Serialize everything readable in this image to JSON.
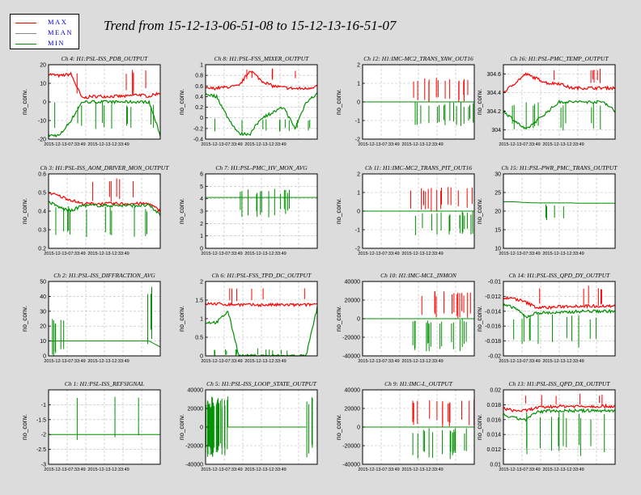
{
  "title": "Trend from 15-12-13-06-51-08 to 15-12-13-16-51-07",
  "legend": [
    {
      "label": "MAX",
      "color": "#ff0000"
    },
    {
      "label": "MEAN",
      "color": "#888888"
    },
    {
      "label": "MIN",
      "color": "#009000"
    }
  ],
  "colors": {
    "max": "#ff0000",
    "mean": "#888888",
    "min": "#009000",
    "background": "#dcdcdc",
    "plot_bg": "#ffffff",
    "grid": "#bbbbbb"
  },
  "chart_data": [
    {
      "type": "line",
      "title": "Ch 4: H1:PSL-ISS_PDB_OUTPUT",
      "ylabel": "no_conv.",
      "ylim": [
        -20,
        20
      ],
      "yticks": [
        -20,
        -10,
        0,
        10,
        20
      ],
      "xtick_labels": [
        "2015-12-13-07:33:49",
        "2015-12-13-12:33:49"
      ],
      "grid": true,
      "ptype": "pdb",
      "series": [
        {
          "name": "MAX",
          "values": [
            15,
            14,
            15,
            2,
            3,
            3,
            3,
            3,
            4,
            3,
            5
          ]
        },
        {
          "name": "MIN",
          "values": [
            -18,
            -18,
            -10,
            0,
            0,
            0,
            0,
            0,
            0,
            0,
            -18
          ]
        }
      ]
    },
    {
      "type": "line",
      "title": "Ch 8: H1:PSL-FSS_MIXER_OUTPUT",
      "ylabel": "no_conv.",
      "ylim": [
        -0.4,
        1.0
      ],
      "yticks": [
        -0.4,
        -0.2,
        0,
        0.2,
        0.4,
        0.6,
        0.8,
        1
      ],
      "xtick_labels": [
        "2015-12-13-07:33:49",
        "2015-12-13-12:33:49"
      ],
      "grid": true,
      "ptype": "mixer",
      "series": [
        {
          "name": "MAX",
          "values": [
            0.55,
            0.56,
            0.58,
            0.6,
            0.9,
            0.7,
            0.6,
            0.57,
            0.55,
            0.55,
            0.6
          ]
        },
        {
          "name": "MIN",
          "values": [
            0.45,
            0.4,
            0.0,
            -0.3,
            -0.3,
            0.0,
            0.1,
            0.2,
            -0.2,
            0.3,
            0.45
          ]
        }
      ]
    },
    {
      "type": "line",
      "title": "Ch 12: H1:IMC-MC2_TRANS_YAW_OUT16",
      "ylabel": "no_conv.",
      "ylim": [
        -2,
        2
      ],
      "yticks": [
        -2,
        -1,
        0,
        1,
        2
      ],
      "xtick_labels": [
        "2015-12-13-07:33:49",
        "2015-12-13-12:33:49"
      ],
      "grid": true,
      "ptype": "burst",
      "series": [
        {
          "name": "MAX",
          "values": [
            0,
            0,
            0,
            0,
            0,
            1.3,
            1.3,
            1.3,
            1.3,
            1.3,
            1.3
          ]
        },
        {
          "name": "MIN",
          "values": [
            0,
            0,
            0,
            0,
            0,
            -1.3,
            -1.3,
            -1.3,
            -1.3,
            -1.3,
            -1.3
          ]
        }
      ]
    },
    {
      "type": "line",
      "title": "Ch 16: H1:PSL-PMC_TEMP_OUTPUT",
      "ylabel": "no_conv.",
      "ylim": [
        303.9,
        304.7
      ],
      "yticks": [
        304,
        304.2,
        304.4,
        304.6
      ],
      "xtick_labels": [
        "2015-12-13-07:33:49",
        "2015-12-13-12:33:49"
      ],
      "grid": true,
      "ptype": "temp",
      "series": [
        {
          "name": "MAX",
          "values": [
            304.4,
            304.5,
            304.6,
            304.55,
            304.5,
            304.5,
            304.45,
            304.45,
            304.45,
            304.45,
            304.45
          ]
        },
        {
          "name": "MIN",
          "values": [
            304.2,
            304.1,
            304.0,
            304.1,
            304.2,
            304.3,
            304.3,
            304.3,
            304.3,
            304.3,
            304.2
          ]
        }
      ]
    },
    {
      "type": "line",
      "title": "Ch 3: H1:PSL-ISS_AOM_DRIVER_MON_OUTPUT",
      "ylabel": "no_conv.",
      "ylim": [
        0.2,
        0.6
      ],
      "yticks": [
        0.2,
        0.3,
        0.4,
        0.5,
        0.6
      ],
      "xtick_labels": [
        "2015-12-13-07:33:49",
        "2015-12-13-12:33:49"
      ],
      "grid": true,
      "ptype": "aom",
      "series": [
        {
          "name": "MAX",
          "values": [
            0.5,
            0.48,
            0.46,
            0.44,
            0.44,
            0.44,
            0.44,
            0.44,
            0.44,
            0.44,
            0.4
          ]
        },
        {
          "name": "MIN",
          "values": [
            0.45,
            0.42,
            0.4,
            0.43,
            0.43,
            0.43,
            0.43,
            0.43,
            0.43,
            0.43,
            0.38
          ]
        }
      ]
    },
    {
      "type": "line",
      "title": "Ch 7: H1:PSL-PMC_HV_MON_AVG",
      "ylabel": "no_conv.",
      "ylim": [
        0,
        6
      ],
      "yticks": [
        0,
        1,
        2,
        3,
        4,
        5,
        6
      ],
      "xtick_labels": [
        "2015-12-13-07:33:49",
        "2015-12-13-12:33:49"
      ],
      "grid": true,
      "ptype": "hv",
      "series": [
        {
          "name": "MEAN",
          "values": [
            4.1,
            4.1,
            4.1,
            4.1,
            4.1,
            4.1,
            4.1,
            4.1,
            4.1,
            4.1,
            4.1
          ]
        }
      ]
    },
    {
      "type": "line",
      "title": "Ch 11: H1:IMC-MC2_TRANS_PIT_OUT16",
      "ylabel": "no_conv.",
      "ylim": [
        -2,
        2
      ],
      "yticks": [
        -2,
        -1,
        0,
        1,
        2
      ],
      "xtick_labels": [
        "2015-12-13-07:33:49",
        "2015-12-13-12:33:49"
      ],
      "grid": true,
      "ptype": "burst",
      "series": [
        {
          "name": "MAX",
          "values": [
            0,
            0,
            0,
            0,
            0,
            1.3,
            1.3,
            1.3,
            1.3,
            1.3,
            1.3
          ]
        },
        {
          "name": "MIN",
          "values": [
            0,
            0,
            0,
            0,
            0,
            -1.3,
            -1.3,
            -1.3,
            -1.3,
            -1.3,
            -1.3
          ]
        }
      ]
    },
    {
      "type": "line",
      "title": "Ch 15: H1:PSL-PWR_PMC_TRANS_OUTPUT",
      "ylabel": "no_conv.",
      "ylim": [
        10,
        30
      ],
      "yticks": [
        10,
        15,
        20,
        25,
        30
      ],
      "xtick_labels": [
        "2015-12-13-07:33:49",
        "2015-12-13-12:33:49"
      ],
      "grid": true,
      "ptype": "pwr",
      "series": [
        {
          "name": "MEAN",
          "values": [
            22.5,
            22.5,
            22.3,
            22.2,
            22.2,
            22.2,
            22.2,
            22.1,
            22.1,
            22.1,
            22.1
          ]
        }
      ]
    },
    {
      "type": "line",
      "title": "Ch 2: H1:PSL-ISS_DIFFRACTION_AVG",
      "ylabel": "no_conv.",
      "ylim": [
        0,
        50
      ],
      "yticks": [
        0,
        10,
        20,
        30,
        40,
        50
      ],
      "xtick_labels": [
        "2015-12-13-07:33:49",
        "2015-12-13-12:33:49"
      ],
      "grid": true,
      "ptype": "diff",
      "series": [
        {
          "name": "MEAN",
          "values": [
            10,
            10,
            10,
            10,
            10,
            10,
            10,
            10,
            10,
            10,
            6
          ]
        }
      ]
    },
    {
      "type": "line",
      "title": "Ch 6: H1:PSL-FSS_TPD_DC_OUTPUT",
      "ylabel": "no_conv.",
      "ylim": [
        0,
        2
      ],
      "yticks": [
        0,
        0.5,
        1,
        1.5,
        2
      ],
      "xtick_labels": [
        "2015-12-13-07:33:49",
        "2015-12-13-12:33:49"
      ],
      "grid": true,
      "ptype": "tpd",
      "series": [
        {
          "name": "MAX",
          "values": [
            1.4,
            1.4,
            1.38,
            1.38,
            1.37,
            1.37,
            1.37,
            1.37,
            1.37,
            1.37,
            1.4
          ]
        },
        {
          "name": "MIN",
          "values": [
            0.9,
            0.9,
            1.2,
            0.0,
            0.0,
            0.0,
            0.0,
            0.0,
            0.0,
            0.0,
            1.3
          ]
        }
      ]
    },
    {
      "type": "line",
      "title": "Ch 10: H1:IMC-MCL_INMON",
      "ylabel": "no_conv.",
      "ylim": [
        -40000,
        40000
      ],
      "yticks": [
        -40000,
        -20000,
        0,
        20000,
        40000
      ],
      "xtick_labels": [
        "2015-12-13-07:33:49",
        "2015-12-13-12:33:49"
      ],
      "grid": true,
      "ptype": "burst",
      "series": [
        {
          "name": "MAX",
          "values": [
            0,
            0,
            0,
            0,
            0,
            30000,
            30000,
            30000,
            30000,
            30000,
            30000
          ]
        },
        {
          "name": "MIN",
          "values": [
            0,
            0,
            0,
            0,
            0,
            -35000,
            -35000,
            -35000,
            -35000,
            -35000,
            -35000
          ]
        }
      ]
    },
    {
      "type": "line",
      "title": "Ch 14: H1:PSL-ISS_QPD_DY_OUTPUT",
      "ylabel": "no_conv.",
      "ylim": [
        -0.02,
        -0.01
      ],
      "yticks": [
        -0.02,
        -0.018,
        -0.016,
        -0.014,
        -0.012,
        -0.01
      ],
      "xtick_labels": [
        "2015-12-13-07:33:49",
        "2015-12-13-12:33:49"
      ],
      "grid": true,
      "ptype": "qpddy",
      "series": [
        {
          "name": "MAX",
          "values": [
            -0.0122,
            -0.0123,
            -0.0128,
            -0.0135,
            -0.0135,
            -0.0134,
            -0.0133,
            -0.0133,
            -0.0133,
            -0.0133,
            -0.0133
          ]
        },
        {
          "name": "MIN",
          "values": [
            -0.0132,
            -0.0135,
            -0.0148,
            -0.0142,
            -0.0142,
            -0.0142,
            -0.0141,
            -0.014,
            -0.014,
            -0.014,
            -0.014
          ]
        }
      ]
    },
    {
      "type": "line",
      "title": "Ch 1: H1:PSL-ISS_REFSIGNAL",
      "ylabel": "no_conv.",
      "ylim": [
        -3,
        -0.5
      ],
      "yticks": [
        -3,
        -2.5,
        -2,
        -1.5,
        -1
      ],
      "xtick_labels": [
        "2015-12-13-07:33:49",
        "2015-12-13-12:33:49"
      ],
      "grid": true,
      "ptype": "ref",
      "series": [
        {
          "name": "MEAN",
          "values": [
            -2.0,
            -2.0,
            -2.0,
            -2.0,
            -2.0,
            -2.0,
            -2.0,
            -2.0,
            -2.0,
            -2.0,
            -2.0
          ]
        }
      ]
    },
    {
      "type": "line",
      "title": "Ch 5: H1:PSL-ISS_LOOP_STATE_OUTPUT",
      "ylabel": "no_conv.",
      "ylim": [
        -40000,
        40000
      ],
      "yticks": [
        -40000,
        -20000,
        0,
        20000,
        40000
      ],
      "xtick_labels": [
        "2015-12-13-07:33:49",
        "2015-12-13-12:33:49"
      ],
      "grid": true,
      "ptype": "loop",
      "series": [
        {
          "name": "MAX",
          "values": [
            33000,
            33000,
            33000,
            0,
            0,
            0,
            0,
            0,
            0,
            0,
            33000
          ]
        },
        {
          "name": "MIN",
          "values": [
            -33000,
            -33000,
            -33000,
            0,
            0,
            0,
            0,
            0,
            0,
            0,
            -33000
          ]
        }
      ]
    },
    {
      "type": "line",
      "title": "Ch 9: H1:IMC-L_OUTPUT",
      "ylabel": "no_conv.",
      "ylim": [
        -40000,
        40000
      ],
      "yticks": [
        -40000,
        -20000,
        0,
        20000,
        40000
      ],
      "xtick_labels": [
        "2015-12-13-07:33:49",
        "2015-12-13-12:33:49"
      ],
      "grid": true,
      "ptype": "burst",
      "series": [
        {
          "name": "MAX",
          "values": [
            0,
            0,
            0,
            0,
            0,
            30000,
            30000,
            30000,
            30000,
            30000,
            30000
          ]
        },
        {
          "name": "MIN",
          "values": [
            0,
            0,
            0,
            0,
            0,
            -35000,
            -35000,
            -35000,
            -35000,
            -35000,
            -35000
          ]
        }
      ]
    },
    {
      "type": "line",
      "title": "Ch 13: H1:PSL-ISS_QPD_DX_OUTPUT",
      "ylabel": "no_conv.",
      "ylim": [
        0.01,
        0.02
      ],
      "yticks": [
        0.01,
        0.012,
        0.014,
        0.016,
        0.018,
        0.02
      ],
      "xtick_labels": [
        "2015-12-13-07:33:49",
        "2015-12-13-12:33:49"
      ],
      "grid": true,
      "ptype": "qpddx",
      "series": [
        {
          "name": "MAX",
          "values": [
            0.0175,
            0.0172,
            0.0172,
            0.0176,
            0.0177,
            0.0178,
            0.0178,
            0.0178,
            0.0178,
            0.0178,
            0.0178
          ]
        },
        {
          "name": "MIN",
          "values": [
            0.0166,
            0.0162,
            0.016,
            0.017,
            0.0172,
            0.0172,
            0.0172,
            0.0172,
            0.0172,
            0.0172,
            0.0172
          ]
        }
      ]
    }
  ]
}
